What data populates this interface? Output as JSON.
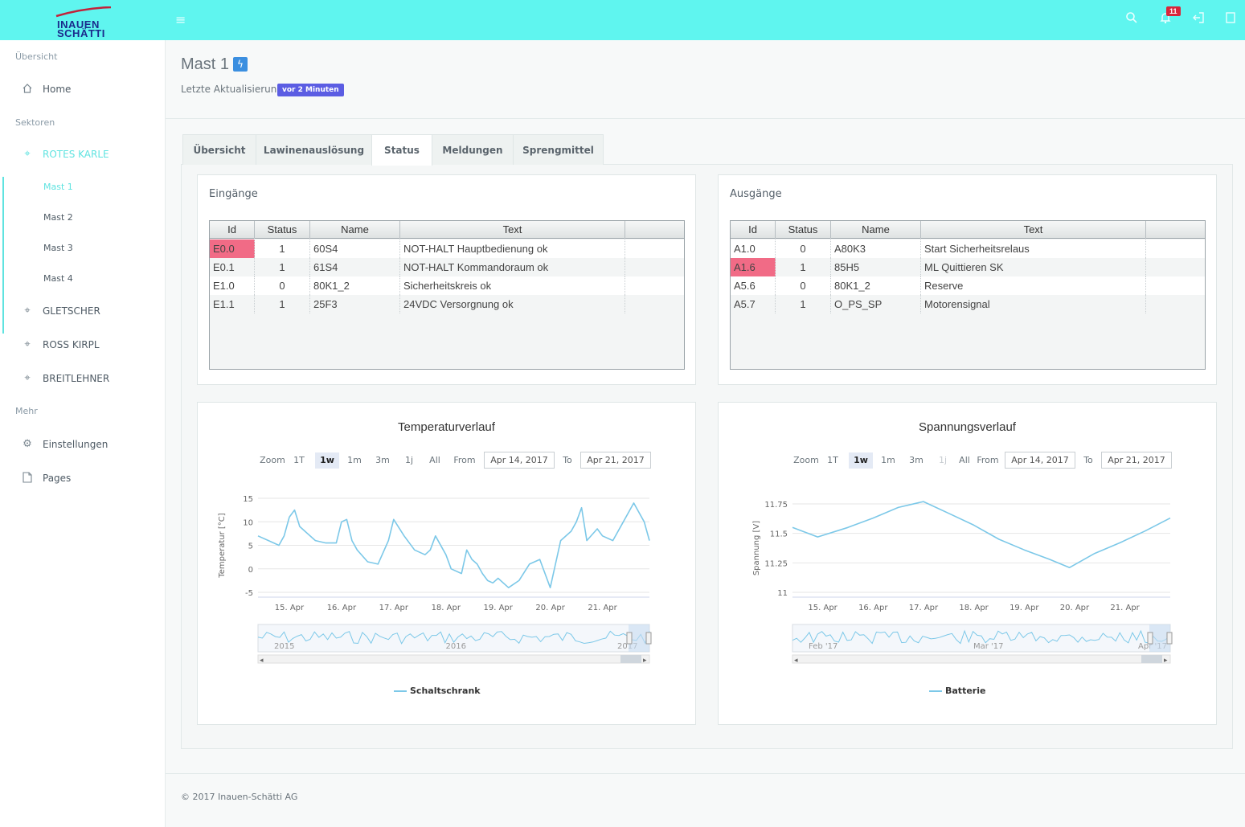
{
  "brand": {
    "line1": "INAUEN",
    "line2": "SCHÄTTI"
  },
  "topbar": {
    "notification_count": "11"
  },
  "sidebar": {
    "section_overview": "Übersicht",
    "home": "Home",
    "section_sectors": "Sektoren",
    "sectors": [
      "ROTES KARLE",
      "GLETSCHER",
      "ROSS KIRPL",
      "BREITLEHNER"
    ],
    "masts": [
      "Mast 1",
      "Mast 2",
      "Mast 3",
      "Mast 4"
    ],
    "section_more": "Mehr",
    "settings": "Einstellungen",
    "pages": "Pages"
  },
  "header": {
    "title": "Mast 1",
    "last_update_label": "Letzte Aktualisierung:",
    "last_update_value": "vor 2 Minuten"
  },
  "tabs": [
    "Übersicht",
    "Lawinenauslösung",
    "Status",
    "Meldungen",
    "Sprengmittel"
  ],
  "inputs_table": {
    "title": "Eingänge",
    "columns": [
      "Id",
      "Status",
      "Name",
      "Text"
    ],
    "rows": [
      [
        "E0.0",
        "1",
        "60S4",
        "NOT-HALT Hauptbedienung ok"
      ],
      [
        "E0.1",
        "1",
        "61S4",
        "NOT-HALT Kommandoraum ok"
      ],
      [
        "E1.0",
        "0",
        "80K1_2",
        "Sicherheitskreis ok"
      ],
      [
        "E1.1",
        "1",
        "25F3",
        "24VDC Versorgnung ok"
      ]
    ]
  },
  "outputs_table": {
    "title": "Ausgänge",
    "columns": [
      "Id",
      "Status",
      "Name",
      "Text"
    ],
    "rows": [
      [
        "A1.0",
        "0",
        "A80K3",
        "Start Sicherheitsrelaus"
      ],
      [
        "A1.6",
        "1",
        "85H5",
        "ML Quittieren SK"
      ],
      [
        "A5.6",
        "0",
        "80K1_2",
        "Reserve"
      ],
      [
        "A5.7",
        "1",
        "O_PS_SP",
        "Motorensignal"
      ]
    ]
  },
  "zoom_controls": {
    "zoom_label": "Zoom",
    "buttons": [
      "1T",
      "1w",
      "1m",
      "3m",
      "1j",
      "All"
    ],
    "from_label": "From",
    "to_label": "To",
    "from_value": "Apr 14, 2017",
    "to_value": "Apr 21, 2017"
  },
  "chart_data": [
    {
      "type": "line",
      "title": "Temperaturverlauf",
      "ylabel": "Temperatur [°C]",
      "xlabel": "",
      "ylim": [
        -5,
        15
      ],
      "yticks": [
        "15",
        "10",
        "5",
        "0",
        "-5"
      ],
      "x_ticks": [
        "15. Apr",
        "16. Apr",
        "17. Apr",
        "18. Apr",
        "19. Apr",
        "20. Apr",
        "21. Apr"
      ],
      "navigator_labels": [
        "2015",
        "2016",
        "2017"
      ],
      "series": [
        {
          "name": "Schaltschrank",
          "color": "#7cc8e8",
          "x": [
            14.4,
            14.6,
            14.8,
            14.9,
            15.0,
            15.1,
            15.2,
            15.3,
            15.5,
            15.7,
            15.9,
            16.0,
            16.1,
            16.2,
            16.3,
            16.5,
            16.7,
            16.9,
            17.0,
            17.2,
            17.4,
            17.6,
            17.7,
            17.8,
            18.0,
            18.1,
            18.3,
            18.4,
            18.5,
            18.6,
            18.7,
            18.8,
            18.9,
            19.0,
            19.2,
            19.4,
            19.6,
            19.8,
            20.0,
            20.2,
            20.4,
            20.5,
            20.6,
            20.7,
            20.9,
            21.0,
            21.2,
            21.4,
            21.6,
            21.8,
            21.9
          ],
          "values": [
            7,
            6,
            5,
            7,
            11,
            12.5,
            9,
            8,
            6,
            5.5,
            5.5,
            10,
            10.5,
            6,
            4,
            1.5,
            1,
            6,
            10.5,
            7,
            4,
            3,
            4,
            7,
            3,
            0,
            -1,
            4,
            2,
            1,
            -1,
            -2.5,
            -3,
            -2,
            -4,
            -2.5,
            1,
            2,
            -4,
            6,
            8,
            10,
            13,
            6,
            8.5,
            7,
            6,
            10,
            14,
            10,
            6
          ]
        }
      ]
    },
    {
      "type": "line",
      "title": "Spannungsverlauf",
      "ylabel": "Spannung [V]",
      "xlabel": "",
      "ylim": [
        11,
        11.75
      ],
      "yticks": [
        "11.75",
        "11.5",
        "11.25",
        "11"
      ],
      "x_ticks": [
        "15. Apr",
        "16. Apr",
        "17. Apr",
        "18. Apr",
        "19. Apr",
        "20. Apr",
        "21. Apr"
      ],
      "navigator_labels": [
        "Feb '17",
        "Mar '17",
        "Apr '17"
      ],
      "series": [
        {
          "name": "Batterie",
          "color": "#7cc8e8",
          "x": [
            14.4,
            14.9,
            15.5,
            16.0,
            16.5,
            17.0,
            17.5,
            18.0,
            18.5,
            19.0,
            19.5,
            19.9,
            20.4,
            20.9,
            21.4,
            21.9
          ],
          "values": [
            11.55,
            11.47,
            11.55,
            11.63,
            11.72,
            11.77,
            11.67,
            11.57,
            11.45,
            11.36,
            11.28,
            11.21,
            11.33,
            11.42,
            11.52,
            11.63
          ]
        }
      ]
    }
  ],
  "footer": {
    "copyright": "© 2017 Inauen-Schätti AG"
  }
}
